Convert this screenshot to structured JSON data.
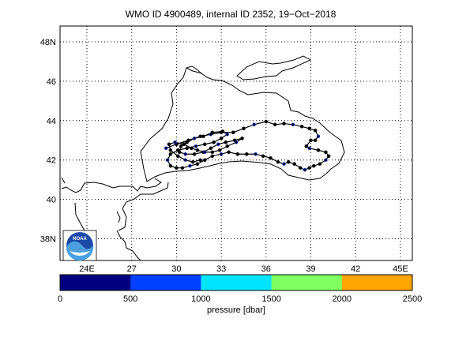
{
  "title": "WMO ID 4900489, internal ID 2352, 19−Oct−2018",
  "map": {
    "lat_labels": [
      "38N",
      "40",
      "42",
      "44",
      "46",
      "48N"
    ],
    "lat_values": [
      38,
      40,
      42,
      44,
      46,
      48
    ],
    "lon_labels": [
      "24E",
      "27",
      "30",
      "33",
      "36",
      "39",
      "42",
      "45E"
    ],
    "lon_values": [
      24,
      27,
      30,
      33,
      36,
      39,
      42,
      45
    ],
    "lon_range": [
      22.2,
      45.8
    ],
    "lat_range": [
      36.9,
      48.8
    ],
    "grid": "dotted",
    "logo_text": "NOAA",
    "colors": {
      "coast": "#000000",
      "track": "#000000"
    }
  },
  "colorbar": {
    "label": "pressure [dbar]",
    "ticks": [
      "0",
      "500",
      "1000",
      "1500",
      "2000",
      "2500"
    ],
    "range": [
      0,
      2500
    ],
    "colors": [
      "#000080",
      "#0040ff",
      "#00e5ff",
      "#80ff60",
      "#ffa500"
    ]
  },
  "track_points": [
    [
      29.3,
      42.6
    ],
    [
      30.0,
      42.8
    ],
    [
      30.8,
      43.0
    ],
    [
      31.6,
      43.2
    ],
    [
      32.3,
      43.3
    ],
    [
      33.0,
      43.4
    ],
    [
      33.8,
      43.4
    ],
    [
      34.5,
      43.6
    ],
    [
      35.2,
      43.8
    ],
    [
      36.0,
      43.95
    ],
    [
      36.6,
      43.8
    ],
    [
      37.2,
      43.85
    ],
    [
      37.8,
      43.8
    ],
    [
      38.4,
      43.7
    ],
    [
      38.9,
      43.6
    ],
    [
      39.3,
      43.5
    ],
    [
      39.5,
      43.2
    ],
    [
      39.3,
      43.0
    ],
    [
      39.0,
      43.0
    ],
    [
      38.7,
      42.7
    ],
    [
      38.9,
      42.6
    ],
    [
      39.5,
      42.5
    ],
    [
      40.0,
      42.4
    ],
    [
      40.2,
      42.2
    ],
    [
      40.0,
      42.0
    ],
    [
      39.6,
      41.8
    ],
    [
      39.2,
      41.7
    ],
    [
      38.9,
      41.6
    ],
    [
      38.6,
      41.5
    ],
    [
      38.3,
      41.6
    ],
    [
      37.9,
      41.8
    ],
    [
      37.5,
      41.9
    ],
    [
      37.2,
      41.8
    ],
    [
      36.8,
      41.9
    ],
    [
      36.3,
      42.1
    ],
    [
      35.8,
      42.2
    ],
    [
      35.3,
      42.3
    ],
    [
      34.7,
      42.3
    ],
    [
      34.1,
      42.3
    ],
    [
      33.5,
      42.4
    ],
    [
      33.0,
      42.3
    ],
    [
      32.4,
      42.2
    ],
    [
      31.9,
      42.0
    ],
    [
      31.4,
      41.8
    ],
    [
      30.9,
      41.7
    ],
    [
      30.4,
      41.6
    ],
    [
      30.0,
      41.6
    ],
    [
      29.6,
      41.7
    ],
    [
      29.4,
      42.0
    ],
    [
      29.6,
      42.3
    ],
    [
      30.1,
      42.5
    ],
    [
      30.7,
      42.6
    ],
    [
      31.3,
      42.7
    ],
    [
      31.9,
      42.8
    ],
    [
      32.5,
      42.9
    ],
    [
      33.0,
      43.1
    ],
    [
      33.4,
      43.3
    ],
    [
      33.1,
      43.45
    ],
    [
      32.4,
      43.4
    ],
    [
      31.8,
      43.2
    ],
    [
      31.2,
      43.1
    ],
    [
      30.7,
      42.9
    ],
    [
      30.3,
      42.7
    ],
    [
      30.2,
      42.4
    ],
    [
      30.6,
      42.3
    ],
    [
      31.2,
      42.3
    ],
    [
      31.8,
      42.4
    ],
    [
      32.3,
      42.6
    ],
    [
      32.8,
      42.8
    ],
    [
      33.3,
      42.9
    ],
    [
      33.9,
      43.0
    ],
    [
      34.4,
      43.1
    ],
    [
      34.0,
      42.9
    ],
    [
      33.4,
      42.7
    ],
    [
      32.9,
      42.5
    ],
    [
      32.4,
      42.4
    ],
    [
      31.9,
      42.4
    ],
    [
      31.4,
      42.5
    ],
    [
      31.0,
      42.6
    ],
    [
      30.5,
      42.8
    ],
    [
      29.9,
      42.9
    ],
    [
      29.5,
      42.8
    ],
    [
      29.6,
      42.5
    ],
    [
      30.1,
      42.2
    ],
    [
      30.6,
      42.0
    ],
    [
      31.1,
      41.9
    ],
    [
      31.6,
      42.0
    ]
  ]
}
